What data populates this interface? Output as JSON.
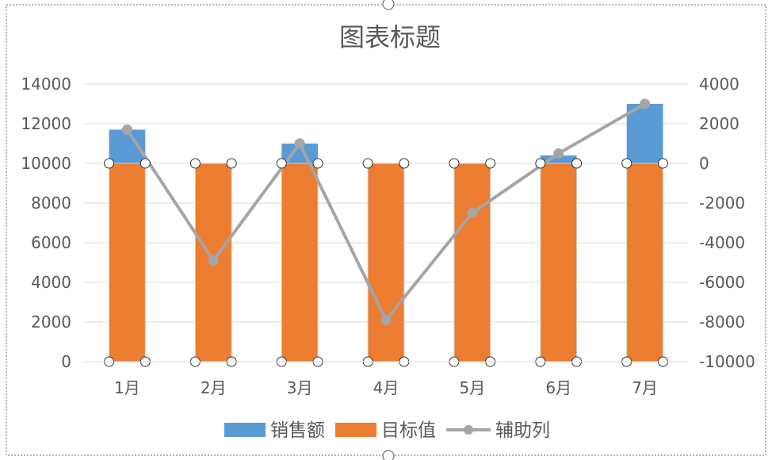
{
  "chart_data": {
    "type": "bar",
    "title": "图表标题",
    "categories": [
      "1月",
      "2月",
      "3月",
      "4月",
      "5月",
      "6月",
      "7月"
    ],
    "series": [
      {
        "name": "销售额",
        "kind": "bar",
        "axis": "primary",
        "color": "#5B9BD5",
        "values": [
          11700,
          10000,
          11000,
          10000,
          10000,
          10400,
          13000
        ]
      },
      {
        "name": "目标值",
        "kind": "bar",
        "axis": "primary",
        "color": "#ED7D31",
        "values": [
          10000,
          10000,
          10000,
          10000,
          10000,
          10000,
          10000
        ]
      },
      {
        "name": "辅助列",
        "kind": "line",
        "axis": "secondary",
        "color": "#A5A5A5",
        "values": [
          1700,
          -4900,
          1000,
          -7900,
          -2500,
          500,
          3000
        ]
      }
    ],
    "y_primary": {
      "min": 0,
      "max": 14000,
      "ticks": [
        0,
        2000,
        4000,
        6000,
        8000,
        10000,
        12000,
        14000
      ]
    },
    "y_secondary": {
      "min": -10000,
      "max": 4000,
      "ticks": [
        -10000,
        -8000,
        -6000,
        -4000,
        -2000,
        0,
        2000,
        4000
      ]
    },
    "grid": true,
    "legend": "bottom"
  }
}
